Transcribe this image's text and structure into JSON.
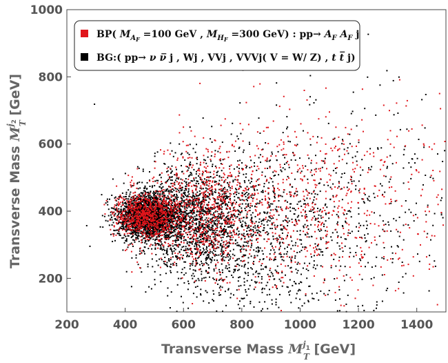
{
  "chart_data": {
    "type": "scatter",
    "title": "",
    "xlabel": {
      "main": "Transverse Mass ",
      "sym": "M",
      "sup": "j",
      "supsub": "1",
      "sub": "T",
      "unit": " [GeV]"
    },
    "ylabel": {
      "main": "Transverse Mass ",
      "sym": "M",
      "sup": "j",
      "supsub": "2",
      "sub": "T",
      "unit": " [GeV]"
    },
    "xlim": [
      200,
      1500
    ],
    "ylim": [
      100,
      1000
    ],
    "xticks": [
      200,
      400,
      600,
      800,
      1000,
      1200,
      1400
    ],
    "yticks": [
      200,
      400,
      600,
      800,
      1000
    ],
    "legend_position": "top-left",
    "series": [
      {
        "name": "BP",
        "color": "#e0151b",
        "legend": {
          "a": "BP( ",
          "m1": "M",
          "m1sub": "A",
          "m1subsub": "F",
          "b": " =100 GeV , ",
          "m2": "M",
          "m2sub": "H",
          "m2subsub": "F",
          "c": " =300 GeV) : pp",
          "arrow": "→",
          "d": " ",
          "af1": "A",
          "af1sub": "F",
          "e": " ",
          "af2": "A",
          "af2sub": "F",
          "f": " j"
        },
        "clusters": [
          {
            "cx": 470,
            "cy": 385,
            "sx": 55,
            "sy": 32,
            "n": 700
          },
          {
            "cx": 650,
            "cy": 395,
            "sx": 110,
            "sy": 80,
            "n": 650
          },
          {
            "cx": 900,
            "cy": 420,
            "sx": 200,
            "sy": 120,
            "n": 550
          },
          {
            "cx": 1250,
            "cy": 450,
            "sx": 180,
            "sy": 140,
            "n": 250
          }
        ]
      },
      {
        "name": "BG",
        "color": "#000000",
        "legend": {
          "a": "BG:( pp",
          "arrow": "→",
          "nu1": " ν ",
          "nu2": "ν̅",
          "b": " j , Wj , VVj , VVVj( V = W/ Z) , ",
          "tt1": "t",
          "tt2": " t̅",
          "c": " j)"
        },
        "clusters": [
          {
            "cx": 475,
            "cy": 385,
            "sx": 50,
            "sy": 32,
            "n": 2200
          },
          {
            "cx": 620,
            "cy": 380,
            "sx": 90,
            "sy": 75,
            "n": 1400
          },
          {
            "cx": 800,
            "cy": 320,
            "sx": 140,
            "sy": 120,
            "n": 700
          },
          {
            "cx": 950,
            "cy": 350,
            "sx": 220,
            "sy": 150,
            "n": 500
          },
          {
            "cx": 1200,
            "cy": 420,
            "sx": 200,
            "sy": 170,
            "n": 260
          }
        ]
      }
    ]
  }
}
